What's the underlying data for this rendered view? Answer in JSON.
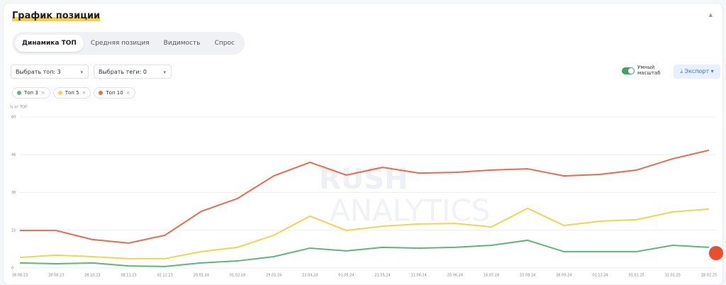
{
  "header": {
    "title": "График позиции"
  },
  "tabs": [
    "Динамика ТОП",
    "Средняя позиция",
    "Видимость",
    "Спрос"
  ],
  "filters": {
    "top": "Выбрать топ: 3",
    "tags": "Выбрать теги: 0"
  },
  "toggle": {
    "label_line1": "Умный",
    "label_line2": "масштаб"
  },
  "export": "Экспорт",
  "watermark": [
    "RUSH",
    "ANALYTICS"
  ],
  "chart_data": {
    "type": "line",
    "y_label": "% от ТОП",
    "x": [
      "16.08.23",
      "28.08.23",
      "26.10.23",
      "08.11.23",
      "02.12.23",
      "20.01.24",
      "01.02.24",
      "29.02.24",
      "22.04.24",
      "01.05.24",
      "21.05.24",
      "11.06.24",
      "20.06.24",
      "16.07.24",
      "10.09.24",
      "26.09.24",
      "01.12.24",
      "01.01.25",
      "31.01.25",
      "28.02.25"
    ],
    "ylim": [
      0,
      60
    ],
    "yticks": [
      0,
      15,
      30,
      45,
      60
    ],
    "grid": true,
    "series": [
      {
        "name": "Топ 3",
        "color": "#5cb87a",
        "values": [
          2,
          1.7,
          2,
          0.8,
          0.6,
          2,
          2.8,
          4.5,
          7.9,
          6.8,
          8.2,
          7.9,
          8.2,
          9,
          11,
          6.5,
          6.5,
          6.5,
          9,
          8.2
        ]
      },
      {
        "name": "Топ 5",
        "color": "#f5d547",
        "values": [
          4.2,
          5.1,
          4.5,
          3.7,
          3.7,
          6.5,
          8.2,
          13,
          20.6,
          14.9,
          16.6,
          17.5,
          17.7,
          16.3,
          23.7,
          16.9,
          18.6,
          19.2,
          22.3,
          23.4
        ]
      },
      {
        "name": "Топ 10",
        "color": "#ee6a4c",
        "values": [
          14.9,
          14.9,
          11.3,
          9.9,
          13,
          22.5,
          27.6,
          36.6,
          42,
          36.9,
          40,
          37.7,
          38,
          38.9,
          39.4,
          36.6,
          37.2,
          38.9,
          43.4,
          46.8
        ]
      }
    ]
  }
}
